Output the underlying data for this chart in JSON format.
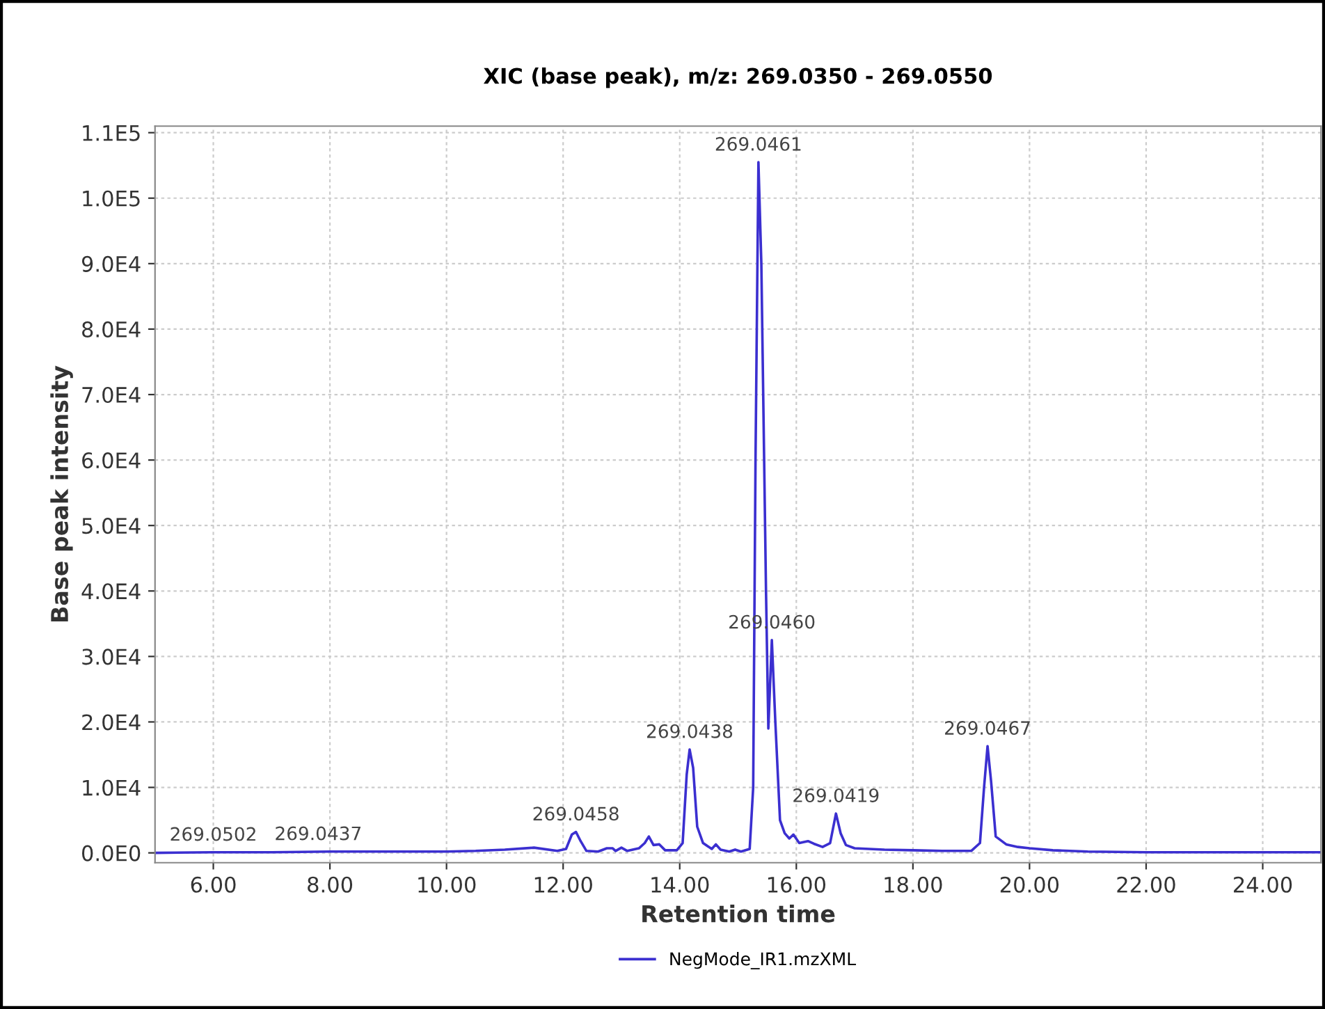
{
  "chart_data": {
    "type": "line",
    "title": "XIC (base peak), m/z: 269.0350 - 269.0550",
    "xlabel": "Retention time",
    "ylabel": "Base peak intensity",
    "series": [
      {
        "name": "NegMode_IR1.mzXML",
        "color": "#3b2fd0",
        "x": [
          5.0,
          6.0,
          7.0,
          8.0,
          9.0,
          10.0,
          10.5,
          11.0,
          11.5,
          11.9,
          12.05,
          12.15,
          12.22,
          12.3,
          12.4,
          12.6,
          12.75,
          12.85,
          12.9,
          13.0,
          13.1,
          13.3,
          13.4,
          13.47,
          13.55,
          13.65,
          13.75,
          13.95,
          14.05,
          14.12,
          14.17,
          14.23,
          14.3,
          14.4,
          14.55,
          14.62,
          14.7,
          14.85,
          14.95,
          15.05,
          15.2,
          15.26,
          15.3,
          15.35,
          15.4,
          15.48,
          15.52,
          15.58,
          15.64,
          15.72,
          15.8,
          15.88,
          15.95,
          16.05,
          16.2,
          16.3,
          16.45,
          16.58,
          16.68,
          16.76,
          16.85,
          17.0,
          17.5,
          18.0,
          18.5,
          19.0,
          19.15,
          19.22,
          19.28,
          19.34,
          19.42,
          19.6,
          19.8,
          20.0,
          20.4,
          21.0,
          22.0,
          23.0,
          24.0,
          25.0
        ],
        "values": [
          0,
          100,
          100,
          200,
          200,
          200,
          300,
          500,
          800,
          300,
          600,
          2800,
          3200,
          1800,
          300,
          200,
          700,
          700,
          300,
          800,
          300,
          700,
          1500,
          2500,
          1200,
          1300,
          400,
          400,
          1500,
          12000,
          15800,
          13000,
          4000,
          1500,
          600,
          1300,
          500,
          200,
          500,
          200,
          600,
          10000,
          60000,
          105500,
          90000,
          40000,
          19000,
          32500,
          20000,
          5000,
          3000,
          2200,
          2800,
          1500,
          1800,
          1400,
          900,
          1500,
          6000,
          3000,
          1200,
          700,
          500,
          400,
          300,
          300,
          1500,
          10000,
          16300,
          11000,
          2500,
          1300,
          900,
          700,
          400,
          200,
          100,
          100,
          100,
          100
        ]
      }
    ],
    "annotations": [
      {
        "text": "269.0502",
        "x": 6.0,
        "y": 100
      },
      {
        "text": "269.0437",
        "x": 7.8,
        "y": 200
      },
      {
        "text": "269.0458",
        "x": 12.22,
        "y": 3200
      },
      {
        "text": "269.0438",
        "x": 14.17,
        "y": 15800
      },
      {
        "text": "269.0461",
        "x": 15.35,
        "y": 105500
      },
      {
        "text": "269.0460",
        "x": 15.58,
        "y": 32500
      },
      {
        "text": "269.0419",
        "x": 16.68,
        "y": 6000
      },
      {
        "text": "269.0467",
        "x": 19.28,
        "y": 16300
      }
    ],
    "xlim": [
      5.0,
      25.0
    ],
    "ylim": [
      -1500,
      111000
    ],
    "xticks": [
      {
        "value": 6,
        "label": "6.00"
      },
      {
        "value": 8,
        "label": "8.00"
      },
      {
        "value": 10,
        "label": "10.00"
      },
      {
        "value": 12,
        "label": "12.00"
      },
      {
        "value": 14,
        "label": "14.00"
      },
      {
        "value": 16,
        "label": "16.00"
      },
      {
        "value": 18,
        "label": "18.00"
      },
      {
        "value": 20,
        "label": "20.00"
      },
      {
        "value": 22,
        "label": "22.00"
      },
      {
        "value": 24,
        "label": "24.00"
      }
    ],
    "yticks": [
      {
        "value": 0,
        "label": "0.0E0"
      },
      {
        "value": 10000,
        "label": "1.0E4"
      },
      {
        "value": 20000,
        "label": "2.0E4"
      },
      {
        "value": 30000,
        "label": "3.0E4"
      },
      {
        "value": 40000,
        "label": "4.0E4"
      },
      {
        "value": 50000,
        "label": "5.0E4"
      },
      {
        "value": 60000,
        "label": "6.0E4"
      },
      {
        "value": 70000,
        "label": "7.0E4"
      },
      {
        "value": 80000,
        "label": "8.0E4"
      },
      {
        "value": 90000,
        "label": "9.0E4"
      },
      {
        "value": 100000,
        "label": "1.0E5"
      },
      {
        "value": 110000,
        "label": "1.1E5"
      }
    ],
    "grid": true,
    "legend": "bottom",
    "marker": "none",
    "line_style": "solid"
  }
}
